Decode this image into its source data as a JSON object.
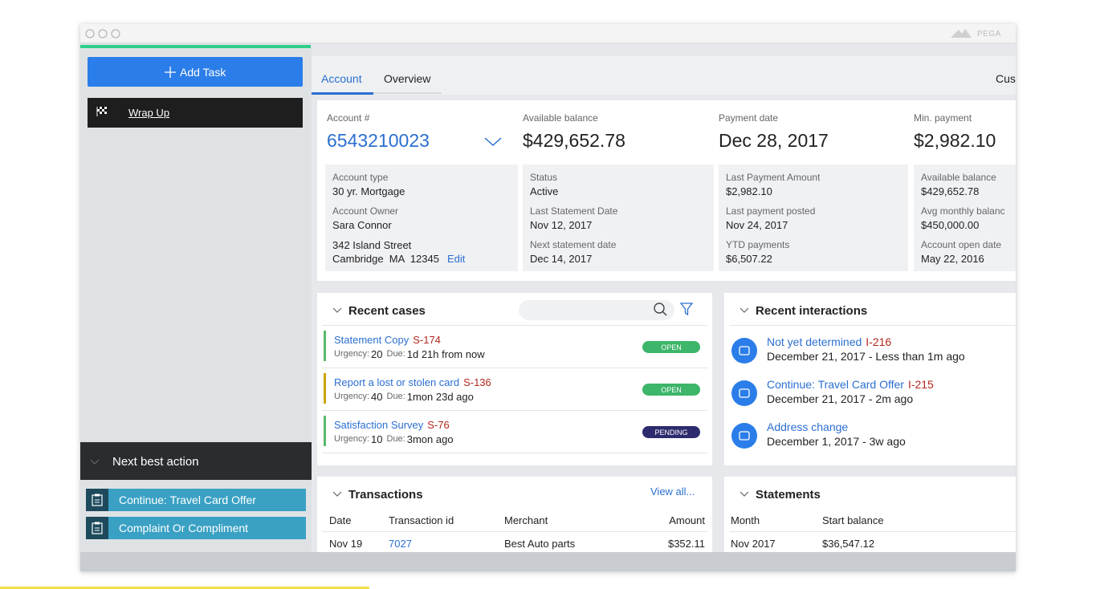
{
  "window": {
    "brand": "PEGA"
  },
  "sidebar": {
    "add_task": "Add Task",
    "wrap_up": "Wrap Up",
    "next_best_action": {
      "title": "Next best action",
      "items": [
        "Continue: Travel Card Offer",
        "Complaint Or Compliment"
      ]
    }
  },
  "tabs": [
    "Account",
    "Overview",
    "Cus"
  ],
  "account": {
    "summary": [
      {
        "label": "Account #",
        "value": "6543210023"
      },
      {
        "label": "Available balance",
        "value": "$429,652.78"
      },
      {
        "label": "Payment date",
        "value": "Dec 28, 2017"
      },
      {
        "label": "Min. payment",
        "value": "$2,982.10"
      }
    ],
    "details": [
      [
        {
          "label": "Account type",
          "value": "30 yr. Mortgage"
        },
        {
          "label": "Account Owner",
          "value": "Sara Connor"
        }
      ],
      [
        {
          "label": "Status",
          "value": "Active"
        },
        {
          "label": "Last Statement Date",
          "value": "Nov 12, 2017"
        },
        {
          "label": "Next statement date",
          "value": "Dec 14, 2017"
        }
      ],
      [
        {
          "label": "Last Payment Amount",
          "value": "$2,982.10"
        },
        {
          "label": "Last payment posted",
          "value": "Nov 24, 2017"
        },
        {
          "label": "YTD payments",
          "value": "$6,507.22"
        }
      ],
      [
        {
          "label": "Available balance",
          "value": "$429,652.78"
        },
        {
          "label": "Avg monthly balanc",
          "value": "$450,000.00"
        },
        {
          "label": "Account open date",
          "value": "May 22, 2016"
        }
      ]
    ],
    "address": {
      "lines": [
        "342 Island Street",
        "Cambridge  MA  12345"
      ],
      "edit": "Edit"
    }
  },
  "recent_cases": {
    "title": "Recent cases",
    "urgency_label": "Urgency:",
    "due_label": "Due:",
    "items": [
      {
        "title": "Statement Copy",
        "id": "S-174",
        "urgency": 20,
        "due": "1d 21h from now",
        "status": "OPEN"
      },
      {
        "title": "Report a lost or stolen card",
        "id": "S-136",
        "urgency": 40,
        "due": "1mon 23d ago",
        "status": "OPEN"
      },
      {
        "title": "Satisfaction Survey",
        "id": "S-76",
        "urgency": 10,
        "due": "3mon ago",
        "status": "PENDING"
      }
    ]
  },
  "recent_interactions": {
    "title": "Recent interactions",
    "items": [
      {
        "title": "Not yet determined",
        "id": "I-216",
        "detail": "December 21, 2017 - Less than 1m ago"
      },
      {
        "title": "Continue: Travel Card Offer",
        "id": "I-215",
        "detail": "December 21, 2017 - 2m ago"
      },
      {
        "title": "Address change",
        "id": null,
        "detail": "December 1, 2017 - 3w ago"
      }
    ]
  },
  "transactions": {
    "title": "Transactions",
    "view_all": "View all...",
    "columns": [
      "Date",
      "Transaction id",
      "Merchant",
      "Amount"
    ],
    "rows": [
      [
        "Nov 19",
        "7027",
        "Best Auto parts",
        "$352.11"
      ]
    ]
  },
  "statements": {
    "title": "Statements",
    "columns": [
      "Month",
      "Start balance"
    ],
    "rows": [
      [
        "Nov 2017",
        "$36,547.12"
      ]
    ]
  }
}
